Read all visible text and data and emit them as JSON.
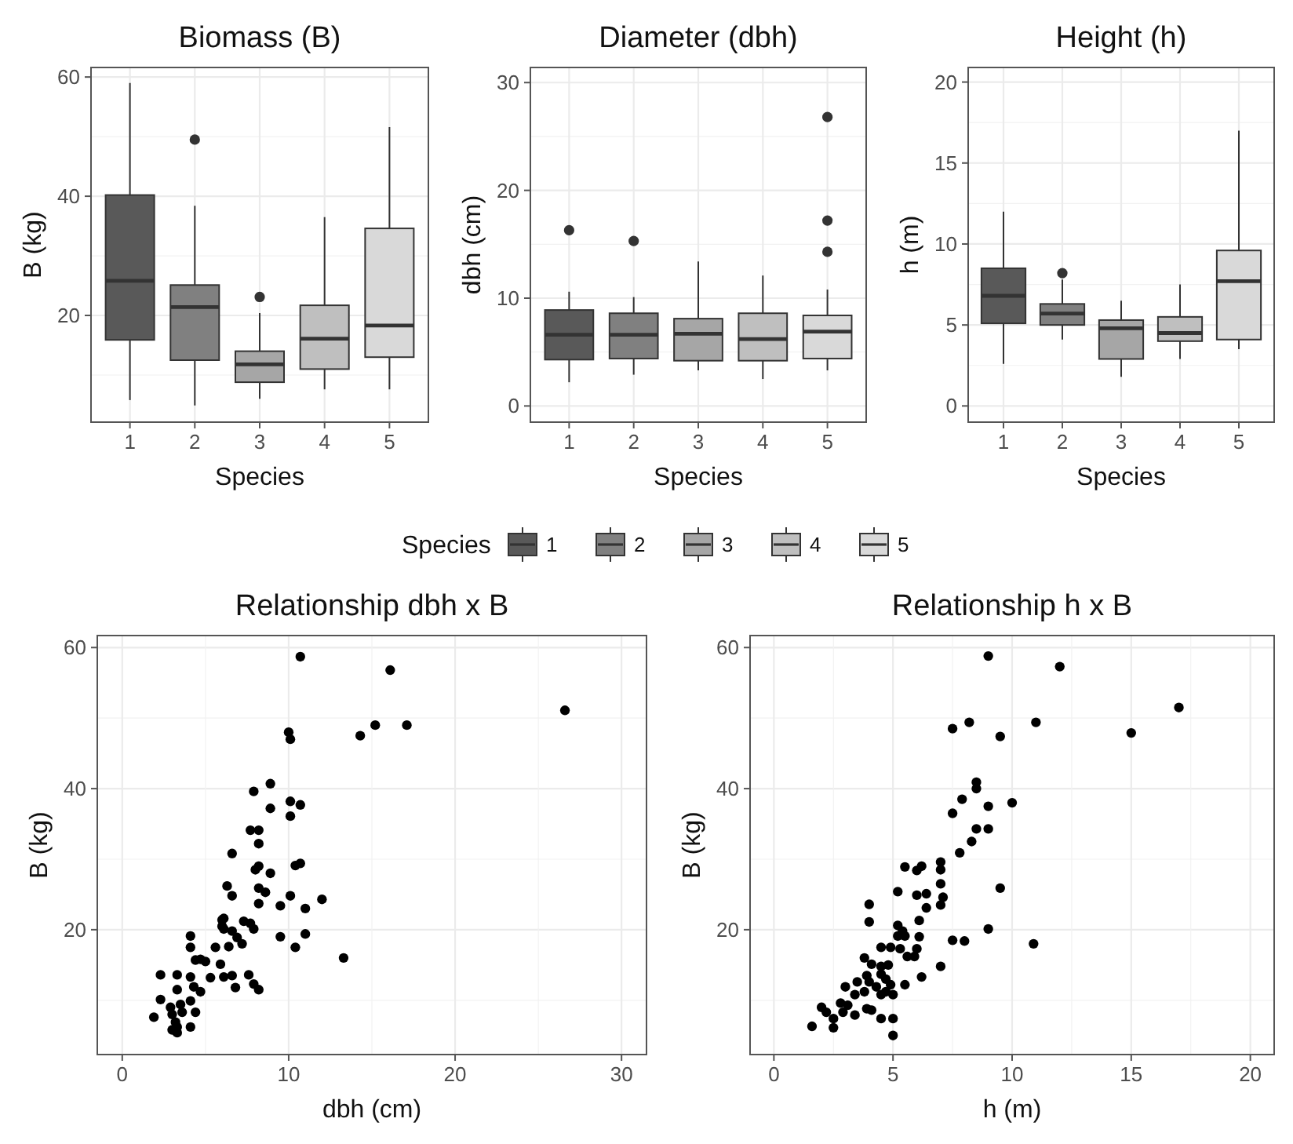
{
  "chart_data": [
    {
      "type": "box",
      "title": "Biomass (B)",
      "xlabel": "Species",
      "ylabel": "B (kg)",
      "categories": [
        "1",
        "2",
        "3",
        "4",
        "5"
      ],
      "colors": [
        "#595959",
        "#808080",
        "#a6a6a6",
        "#bfbfbf",
        "#d9d9d9"
      ],
      "ylim": [
        2.1,
        61.6
      ],
      "yticks": [
        20,
        40,
        60
      ],
      "grid": true,
      "boxes": [
        {
          "low": 5.8,
          "q1": 15.9,
          "median": 25.8,
          "q3": 40.2,
          "high": 59.0
        },
        {
          "low": 4.9,
          "q1": 12.5,
          "median": 21.4,
          "q3": 25.1,
          "high": 38.4,
          "outliers": [
            49.5
          ]
        },
        {
          "low": 6.0,
          "q1": 8.8,
          "median": 11.8,
          "q3": 14.0,
          "high": 20.4,
          "outliers": [
            23.1
          ]
        },
        {
          "low": 7.6,
          "q1": 11.0,
          "median": 16.1,
          "q3": 21.7,
          "high": 36.5
        },
        {
          "low": 7.6,
          "q1": 13.0,
          "median": 18.3,
          "q3": 34.6,
          "high": 51.6
        }
      ]
    },
    {
      "type": "box",
      "title": "Diameter (dbh)",
      "xlabel": "Species",
      "ylabel": "dbh (cm)",
      "categories": [
        "1",
        "2",
        "3",
        "4",
        "5"
      ],
      "ylim": [
        -1.5,
        31.4
      ],
      "yticks": [
        0,
        10,
        20,
        30
      ],
      "grid": true,
      "legend": "bottom",
      "legend_title": "Species",
      "series": [
        {
          "name": "1",
          "color": "#595959",
          "boxes": [
            {
              "low": 2.2,
              "q1": 4.3,
              "median": 6.6,
              "q3": 8.9,
              "high": 10.6,
              "outliers": [
                16.3
              ]
            },
            null,
            null,
            null,
            null
          ]
        },
        {
          "name": "2",
          "color": "#808080",
          "boxes": [
            null,
            {
              "low": 2.9,
              "q1": 4.4,
              "median": 6.6,
              "q3": 8.6,
              "high": 10.1,
              "outliers": [
                15.3
              ]
            },
            null,
            null,
            null
          ]
        },
        {
          "name": "3",
          "color": "#a6a6a6",
          "boxes": [
            null,
            null,
            {
              "low": 3.3,
              "q1": 4.2,
              "median": 6.7,
              "q3": 8.1,
              "high": 13.4
            },
            null,
            null
          ]
        },
        {
          "name": "4",
          "color": "#bfbfbf",
          "boxes": [
            null,
            null,
            null,
            {
              "low": 2.5,
              "q1": 4.2,
              "median": 6.2,
              "q3": 8.6,
              "high": 12.1
            },
            null
          ]
        },
        {
          "name": "5",
          "color": "#d9d9d9",
          "boxes": [
            null,
            null,
            null,
            null,
            {
              "low": 3.3,
              "q1": 4.4,
              "median": 6.9,
              "q3": 8.4,
              "high": 10.8,
              "outliers": [
                14.3,
                17.2,
                26.8
              ]
            }
          ]
        }
      ]
    },
    {
      "type": "box",
      "title": "Height (h)",
      "xlabel": "Species",
      "ylabel": "h (m)",
      "categories": [
        "1",
        "2",
        "3",
        "4",
        "5"
      ],
      "colors": [
        "#595959",
        "#808080",
        "#a6a6a6",
        "#bfbfbf",
        "#d9d9d9"
      ],
      "ylim": [
        -1.0,
        20.9
      ],
      "yticks": [
        0,
        5,
        10,
        15,
        20
      ],
      "grid": true,
      "boxes": [
        {
          "low": 2.6,
          "q1": 5.1,
          "median": 6.8,
          "q3": 8.5,
          "high": 12.0
        },
        {
          "low": 4.1,
          "q1": 5.0,
          "median": 5.7,
          "q3": 6.3,
          "high": 7.8,
          "outliers": [
            8.2
          ]
        },
        {
          "low": 1.8,
          "q1": 2.9,
          "median": 4.8,
          "q3": 5.3,
          "high": 6.5
        },
        {
          "low": 2.9,
          "q1": 4.0,
          "median": 4.5,
          "q3": 5.5,
          "high": 7.5
        },
        {
          "low": 3.5,
          "q1": 4.1,
          "median": 7.7,
          "q3": 9.6,
          "high": 17.0
        }
      ]
    },
    {
      "type": "scatter",
      "title": "Relationship dbh x B",
      "xlabel": "dbh (cm)",
      "ylabel": "B (kg)",
      "xlim": [
        -1.5,
        31.5
      ],
      "xticks": [
        0,
        10,
        20,
        30
      ],
      "ylim": [
        2.3,
        61.7
      ],
      "yticks": [
        20,
        40,
        60
      ],
      "grid": true,
      "marker": "circle",
      "series": [
        {
          "color": "#000000",
          "x": [
            10.7,
            10.0,
            10.1,
            7.9,
            8.9,
            8.9,
            10.1,
            10.7,
            10.1,
            7.7,
            8.2,
            8.2,
            6.6,
            8.0,
            8.2,
            8.9,
            10.4,
            10.7,
            6.3,
            6.6,
            8.2,
            8.6,
            8.2,
            9.5,
            10.1,
            11.0,
            12.0,
            6.0,
            6.1,
            6.0,
            6.1,
            7.3,
            7.7,
            7.9,
            6.6,
            6.9,
            6.4,
            7.2,
            9.5,
            11.0,
            10.4,
            4.1,
            4.1,
            4.4,
            4.7,
            5.0,
            5.6,
            5.9,
            2.3,
            3.3,
            4.1,
            5.3,
            6.1,
            6.6,
            7.6,
            6.8,
            7.9,
            8.2,
            3.3,
            4.3,
            4.7,
            2.3,
            2.9,
            3.5,
            4.1,
            1.9,
            3.0,
            3.6,
            4.4,
            3.2,
            3.3,
            4.1,
            3.3,
            3.0,
            16.1,
            26.6,
            14.3,
            15.2,
            17.1,
            13.3
          ],
          "values": [
            58.7,
            48.0,
            47.0,
            39.6,
            40.7,
            37.2,
            38.2,
            37.7,
            36.1,
            34.1,
            34.1,
            32.2,
            30.8,
            28.5,
            29.0,
            28.0,
            29.1,
            29.4,
            26.2,
            24.8,
            25.9,
            25.3,
            23.7,
            23.4,
            24.8,
            23.0,
            24.3,
            21.4,
            21.6,
            20.5,
            20.1,
            21.2,
            20.9,
            20.1,
            19.8,
            18.9,
            17.6,
            18.0,
            19.0,
            19.4,
            17.5,
            19.1,
            17.5,
            15.7,
            15.8,
            15.5,
            17.5,
            15.1,
            13.6,
            13.6,
            13.3,
            13.2,
            13.3,
            13.5,
            13.6,
            11.8,
            12.3,
            11.5,
            11.5,
            11.9,
            11.2,
            10.1,
            9.0,
            9.4,
            9.9,
            7.6,
            8.0,
            8.3,
            8.3,
            6.9,
            6.2,
            6.2,
            5.4,
            5.8,
            56.8,
            51.1,
            47.5,
            49.0,
            49.0,
            16.0
          ]
        }
      ]
    },
    {
      "type": "scatter",
      "title": "Relationship h x B",
      "xlabel": "h (m)",
      "ylabel": "B (kg)",
      "xlim": [
        -1.0,
        21.0
      ],
      "xticks": [
        0,
        5,
        10,
        15,
        20
      ],
      "ylim": [
        2.3,
        61.7
      ],
      "yticks": [
        20,
        40,
        60
      ],
      "grid": true,
      "marker": "circle",
      "series": [
        {
          "color": "#000000",
          "x": [
            7.5,
            8.2,
            9.5,
            8.5,
            8.5,
            7.9,
            7.5,
            9.0,
            10.0,
            8.5,
            9.0,
            8.3,
            7.8,
            5.5,
            6.0,
            6.2,
            7.0,
            7.0,
            7.0,
            5.2,
            6.0,
            6.4,
            6.4,
            7.1,
            7.0,
            9.5,
            4.0,
            4.0,
            5.2,
            5.4,
            5.2,
            5.5,
            6.1,
            7.5,
            8.0,
            9.0,
            10.9,
            6.1,
            6.0,
            5.6,
            5.9,
            4.5,
            4.9,
            5.3,
            3.8,
            4.1,
            4.5,
            4.8,
            7.0,
            6.2,
            3.5,
            3.9,
            4.0,
            4.5,
            4.7,
            4.3,
            4.9,
            5.5,
            3.0,
            3.4,
            3.8,
            4.5,
            4.7,
            5.0,
            2.8,
            3.1,
            3.9,
            4.1,
            2.0,
            2.2,
            2.9,
            3.4,
            2.5,
            4.5,
            5.0,
            1.6,
            2.5,
            5.0,
            9.0,
            12.0,
            17.0,
            15.0,
            11.0
          ],
          "values": [
            48.5,
            49.4,
            47.4,
            40.9,
            40.0,
            38.5,
            36.5,
            37.5,
            38.0,
            34.3,
            34.3,
            32.5,
            30.9,
            28.9,
            28.4,
            29.0,
            29.6,
            28.5,
            26.5,
            25.4,
            24.9,
            25.1,
            23.1,
            24.6,
            23.5,
            25.9,
            23.6,
            21.1,
            20.6,
            19.8,
            19.1,
            19.1,
            21.3,
            18.5,
            18.4,
            20.1,
            18.0,
            19.0,
            17.3,
            16.2,
            16.2,
            17.5,
            17.5,
            17.3,
            16.0,
            15.1,
            14.8,
            15.0,
            14.8,
            13.3,
            12.6,
            13.5,
            12.6,
            13.7,
            13.0,
            11.9,
            12.2,
            12.2,
            11.9,
            10.8,
            11.2,
            10.8,
            11.2,
            10.8,
            9.6,
            9.3,
            8.8,
            8.6,
            9.0,
            8.3,
            8.3,
            7.9,
            7.4,
            7.4,
            7.4,
            6.3,
            6.1,
            5.0,
            58.8,
            57.3,
            51.5,
            47.9,
            49.4
          ]
        }
      ]
    }
  ]
}
